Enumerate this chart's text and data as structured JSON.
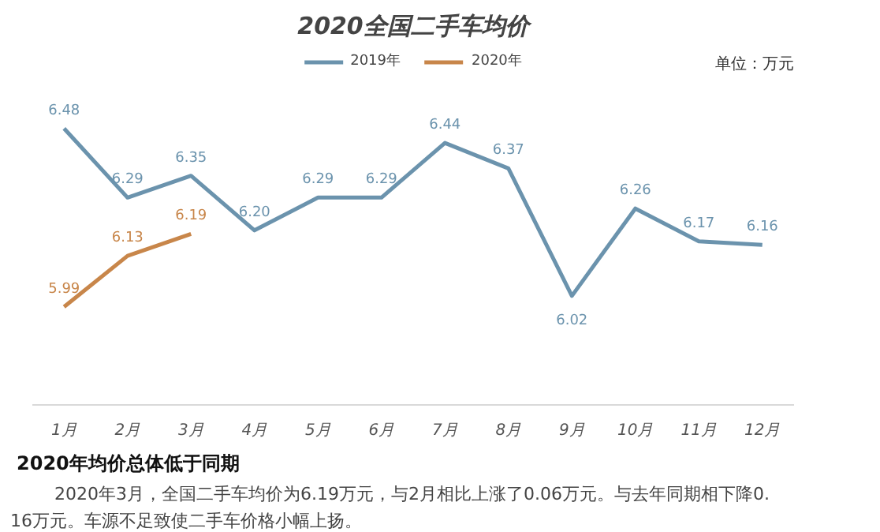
{
  "chart_data": {
    "type": "line",
    "title": "2020全国二手车均价",
    "categories": [
      "1月",
      "2月",
      "3月",
      "4月",
      "5月",
      "6月",
      "7月",
      "8月",
      "9月",
      "10月",
      "11月",
      "12月"
    ],
    "series": [
      {
        "name": "2019年",
        "color": "#6b93ad",
        "values": [
          6.48,
          6.29,
          6.35,
          6.2,
          6.29,
          6.29,
          6.44,
          6.37,
          6.02,
          6.26,
          6.17,
          6.16
        ],
        "value_labels": [
          "6.48",
          "6.29",
          "6.35",
          "6.20",
          "6.29",
          "6.29",
          "6.44",
          "6.37",
          "6.02",
          "6.26",
          "6.17",
          "6.16"
        ]
      },
      {
        "name": "2020年",
        "color": "#c8864a",
        "values": [
          5.99,
          6.13,
          6.19,
          null,
          null,
          null,
          null,
          null,
          null,
          null,
          null,
          null
        ],
        "value_labels": [
          "5.99",
          "6.13",
          "6.19",
          null,
          null,
          null,
          null,
          null,
          null,
          null,
          null,
          null
        ]
      }
    ],
    "tick_labels": "x",
    "grid": false,
    "legend": "top",
    "marker": "none",
    "line_style": "solid",
    "annotations": [
      "单位：万元",
      "2020年均价总体低于同期",
      "2020年3月，全国二手车均价为6.19万元，与2月相比上涨了0.06万元。与去年同期相下降0.16万元。车源不足致使二手车价格小幅上扬。"
    ]
  }
}
